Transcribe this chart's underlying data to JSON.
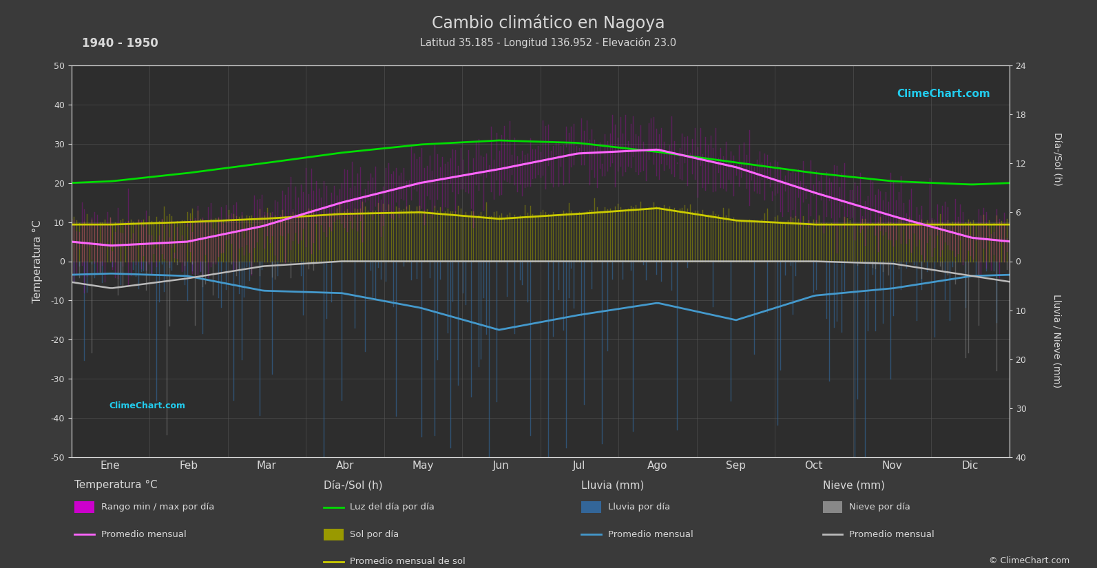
{
  "title": "Cambio climático en Nagoya",
  "subtitle": "Latitud 35.185 - Longitud 136.952 - Elevación 23.0",
  "period": "1940 - 1950",
  "bg_color": "#3a3a3a",
  "plot_bg_color": "#2d2d2d",
  "text_color": "#d8d8d8",
  "grid_color": "#555555",
  "months": [
    "Ene",
    "Feb",
    "Mar",
    "Abr",
    "May",
    "Jun",
    "Jul",
    "Ago",
    "Sep",
    "Oct",
    "Nov",
    "Dic"
  ],
  "temp_avg_monthly": [
    4.0,
    5.0,
    9.0,
    15.0,
    20.0,
    23.5,
    27.5,
    28.5,
    24.0,
    17.5,
    11.5,
    6.0
  ],
  "temp_max_monthly": [
    8.5,
    9.5,
    14.0,
    20.0,
    25.0,
    28.5,
    32.5,
    33.5,
    28.5,
    22.0,
    16.0,
    10.0
  ],
  "temp_min_monthly": [
    -1.5,
    -0.5,
    4.0,
    9.5,
    14.5,
    19.0,
    23.0,
    24.0,
    19.5,
    12.5,
    6.5,
    1.0
  ],
  "daylight_monthly": [
    9.8,
    10.8,
    12.0,
    13.3,
    14.3,
    14.8,
    14.5,
    13.4,
    12.1,
    10.8,
    9.8,
    9.4
  ],
  "sunshine_monthly": [
    4.5,
    4.8,
    5.2,
    5.8,
    6.0,
    5.2,
    5.8,
    6.5,
    5.0,
    4.5,
    4.5,
    4.5
  ],
  "rain_avg_monthly": [
    2.5,
    3.0,
    6.0,
    6.5,
    9.5,
    14.0,
    11.0,
    8.5,
    12.0,
    7.0,
    5.5,
    3.0
  ],
  "snow_avg_monthly": [
    5.5,
    3.5,
    1.0,
    0.0,
    0.0,
    0.0,
    0.0,
    0.0,
    0.0,
    0.0,
    0.5,
    3.0
  ],
  "colors": {
    "temp_range_bar": "#cc00cc",
    "temp_avg_line": "#ff66ff",
    "daylight_line": "#00dd00",
    "sunshine_bar": "#999900",
    "sunshine_avg_line": "#cccc00",
    "rain_bar": "#336699",
    "rain_avg_line": "#4499cc",
    "snow_bar": "#888888",
    "snow_avg_line": "#bbbbbb"
  }
}
